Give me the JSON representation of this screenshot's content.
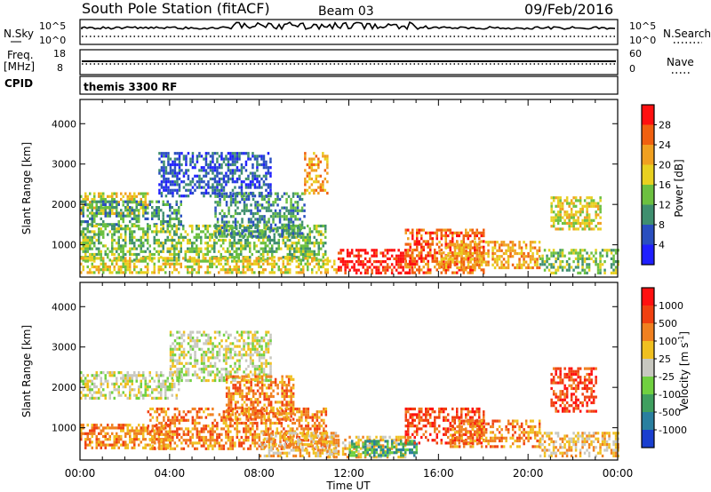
{
  "header": {
    "station": "South Pole Station (fitACF)",
    "beam": "Beam 03",
    "date": "09/Feb/2016"
  },
  "summary_panels": {
    "nsky_label": "N.Sky",
    "nsky_tick_top": "10^5",
    "nsky_tick_bottom": "10^0",
    "nsearch_label": "N.Search",
    "freq_label_line1": "Freq.",
    "freq_label_line2": "[MHz]",
    "freq_tick_top": "18",
    "freq_tick_bottom": "8",
    "nave_label": "Nave",
    "nave_tick_top": "60",
    "nave_tick_bottom": "0",
    "cpid_label": "CPID",
    "cpid_value": "themis 3300 RF"
  },
  "chart_data": [
    {
      "type": "heatmap",
      "quantity": "Power",
      "ylabel": "Slant Range [km]",
      "ylim": [
        200,
        4600
      ],
      "yticks": [
        "1000",
        "2000",
        "3000",
        "4000"
      ],
      "xlim_hours": [
        0,
        24
      ],
      "colorbar_label": "Power [dB]",
      "colorbar_ticks": [
        "4",
        "8",
        "12",
        "16",
        "20",
        "24",
        "28"
      ],
      "colors": [
        "#1f1fff",
        "#2a4fbf",
        "#3f8f6f",
        "#6cc040",
        "#e8d020",
        "#f0a020",
        "#f06010",
        "#ff1010"
      ],
      "regions": [
        {
          "t0": 0.0,
          "t1": 3.0,
          "r0": 1800,
          "r1": 2300,
          "level": 4
        },
        {
          "t0": 0.0,
          "t1": 4.5,
          "r0": 1500,
          "r1": 2100,
          "level": 2
        },
        {
          "t0": 3.5,
          "t1": 8.5,
          "r0": 2200,
          "r1": 3300,
          "level": 1
        },
        {
          "t0": 0.0,
          "t1": 11.0,
          "r0": 600,
          "r1": 1500,
          "level": 3
        },
        {
          "t0": 0.0,
          "t1": 11.5,
          "r0": 300,
          "r1": 700,
          "level": 4
        },
        {
          "t0": 6.0,
          "t1": 10.0,
          "r0": 1200,
          "r1": 2300,
          "level": 2
        },
        {
          "t0": 10.0,
          "t1": 11.0,
          "r0": 2300,
          "r1": 3300,
          "level": 5
        },
        {
          "t0": 11.5,
          "t1": 14.8,
          "r0": 300,
          "r1": 900,
          "level": 7
        },
        {
          "t0": 14.5,
          "t1": 18.0,
          "r0": 300,
          "r1": 1400,
          "level": 6
        },
        {
          "t0": 16.0,
          "t1": 20.5,
          "r0": 400,
          "r1": 1100,
          "level": 5
        },
        {
          "t0": 20.5,
          "t1": 24.0,
          "r0": 300,
          "r1": 900,
          "level": 3
        },
        {
          "t0": 21.0,
          "t1": 23.2,
          "r0": 1400,
          "r1": 2200,
          "level": 4
        }
      ]
    },
    {
      "type": "heatmap",
      "quantity": "Velocity",
      "ylabel": "Slant Range [km]",
      "ylim": [
        200,
        4600
      ],
      "yticks": [
        "1000",
        "2000",
        "3000",
        "4000"
      ],
      "xlabel": "Time UT",
      "xticks": [
        "00:00",
        "04:00",
        "08:00",
        "12:00",
        "16:00",
        "20:00",
        "00:00"
      ],
      "xlim_hours": [
        0,
        24
      ],
      "colorbar_label": "Velocity [m s",
      "colorbar_label_sup": "-1",
      "colorbar_label_end": "]",
      "colorbar_ticks": [
        "1000",
        "500",
        "100",
        "25",
        "-25",
        "-100",
        "-500",
        "-1000"
      ],
      "colors": [
        "#1a3fcf",
        "#2a7f9f",
        "#3f9f5f",
        "#70d040",
        "#c8c8c0",
        "#f0c020",
        "#f08020",
        "#f04010",
        "#ff1010"
      ],
      "regions": [
        {
          "t0": 0.0,
          "t1": 4.5,
          "r0": 1700,
          "r1": 2400,
          "level": 4
        },
        {
          "t0": 4.0,
          "t1": 8.5,
          "r0": 2200,
          "r1": 3400,
          "level": 4
        },
        {
          "t0": 0.0,
          "t1": 4.0,
          "r0": 500,
          "r1": 1100,
          "level": 6
        },
        {
          "t0": 3.0,
          "t1": 11.0,
          "r0": 500,
          "r1": 1500,
          "level": 6
        },
        {
          "t0": 6.5,
          "t1": 9.5,
          "r0": 1200,
          "r1": 2300,
          "level": 6
        },
        {
          "t0": 8.0,
          "t1": 11.5,
          "r0": 300,
          "r1": 900,
          "level": 5
        },
        {
          "t0": 11.0,
          "t1": 14.5,
          "r0": 300,
          "r1": 800,
          "level": 5
        },
        {
          "t0": 12.0,
          "t1": 15.0,
          "r0": 300,
          "r1": 700,
          "level": 2
        },
        {
          "t0": 14.5,
          "t1": 18.0,
          "r0": 600,
          "r1": 1500,
          "level": 7
        },
        {
          "t0": 16.5,
          "t1": 20.5,
          "r0": 500,
          "r1": 1200,
          "level": 6
        },
        {
          "t0": 20.5,
          "t1": 24.0,
          "r0": 300,
          "r1": 900,
          "level": 5
        },
        {
          "t0": 21.0,
          "t1": 23.0,
          "r0": 1400,
          "r1": 2500,
          "level": 7
        }
      ]
    }
  ]
}
